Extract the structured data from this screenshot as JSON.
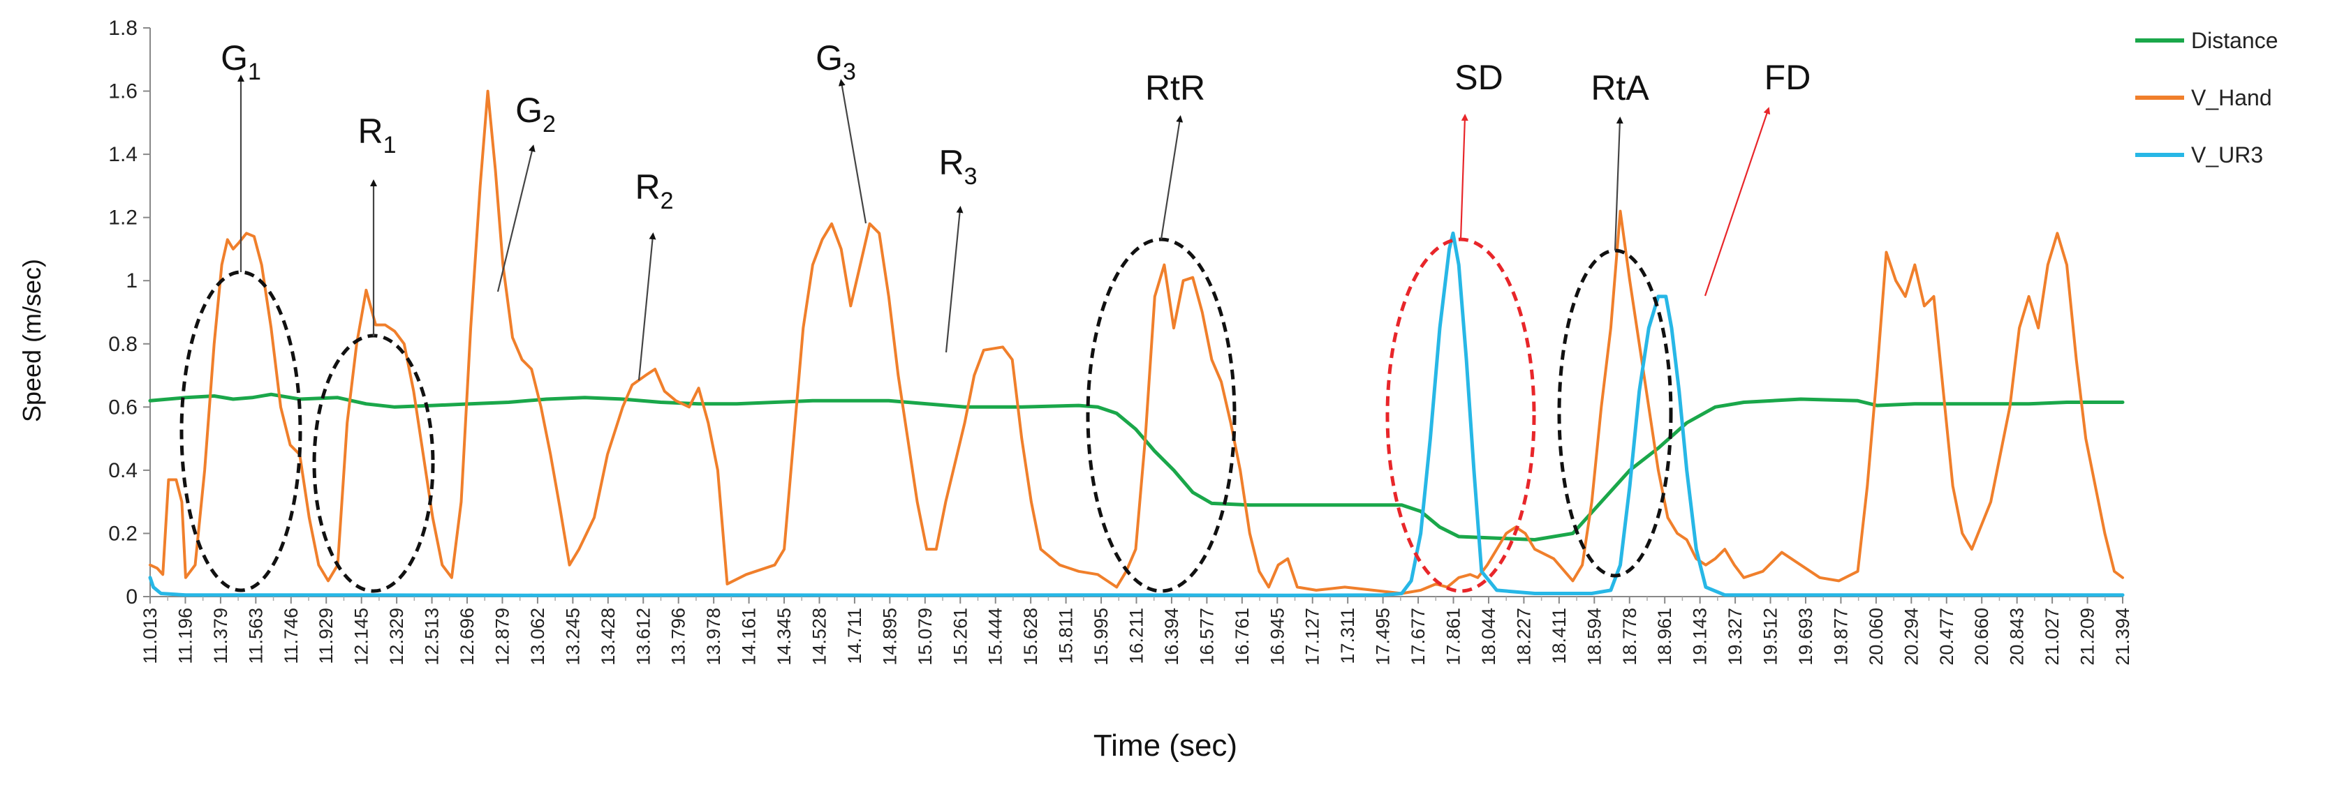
{
  "chart_data": {
    "type": "line",
    "xlabel": "Time (sec)",
    "ylabel": "Speed (m/sec)",
    "ylim": [
      0,
      1.8
    ],
    "xlim": [
      11.013,
      21.394
    ],
    "y_ticks": [
      "0",
      "0.2",
      "0.4",
      "0.6",
      "0.8",
      "1",
      "1.2",
      "1.4",
      "1.6",
      "1.8"
    ],
    "x_ticks": [
      "11.013",
      "11.196",
      "11.379",
      "11.563",
      "11.746",
      "11.929",
      "12.145",
      "12.329",
      "12.513",
      "12.696",
      "12.879",
      "13.062",
      "13.245",
      "13.428",
      "13.612",
      "13.796",
      "13.978",
      "14.161",
      "14.345",
      "14.528",
      "14.711",
      "14.895",
      "15.079",
      "15.261",
      "15.444",
      "15.628",
      "15.811",
      "15.995",
      "16.211",
      "16.394",
      "16.577",
      "16.761",
      "16.945",
      "17.127",
      "17.311",
      "17.495",
      "17.677",
      "17.861",
      "18.044",
      "18.227",
      "18.411",
      "18.594",
      "18.778",
      "18.961",
      "19.143",
      "19.327",
      "19.512",
      "19.693",
      "19.877",
      "20.060",
      "20.294",
      "20.477",
      "20.660",
      "20.843",
      "21.027",
      "21.209",
      "21.394"
    ],
    "grid": false,
    "legend_position": "top-right",
    "series": [
      {
        "name": "Distance",
        "color": "#1aa74a",
        "points": [
          [
            11.013,
            0.62
          ],
          [
            11.2,
            0.63
          ],
          [
            11.35,
            0.635
          ],
          [
            11.45,
            0.625
          ],
          [
            11.55,
            0.63
          ],
          [
            11.65,
            0.64
          ],
          [
            11.8,
            0.625
          ],
          [
            12.0,
            0.63
          ],
          [
            12.15,
            0.61
          ],
          [
            12.3,
            0.6
          ],
          [
            12.5,
            0.605
          ],
          [
            12.7,
            0.61
          ],
          [
            12.9,
            0.615
          ],
          [
            13.1,
            0.625
          ],
          [
            13.3,
            0.63
          ],
          [
            13.5,
            0.625
          ],
          [
            13.7,
            0.615
          ],
          [
            13.9,
            0.61
          ],
          [
            14.1,
            0.61
          ],
          [
            14.3,
            0.615
          ],
          [
            14.5,
            0.62
          ],
          [
            14.7,
            0.62
          ],
          [
            14.9,
            0.62
          ],
          [
            15.1,
            0.61
          ],
          [
            15.3,
            0.6
          ],
          [
            15.6,
            0.6
          ],
          [
            15.9,
            0.605
          ],
          [
            16.0,
            0.6
          ],
          [
            16.1,
            0.58
          ],
          [
            16.2,
            0.53
          ],
          [
            16.3,
            0.46
          ],
          [
            16.4,
            0.4
          ],
          [
            16.5,
            0.33
          ],
          [
            16.6,
            0.295
          ],
          [
            16.8,
            0.29
          ],
          [
            17.2,
            0.29
          ],
          [
            17.6,
            0.29
          ],
          [
            17.7,
            0.27
          ],
          [
            17.8,
            0.22
          ],
          [
            17.9,
            0.19
          ],
          [
            18.1,
            0.185
          ],
          [
            18.3,
            0.18
          ],
          [
            18.5,
            0.2
          ],
          [
            18.65,
            0.3
          ],
          [
            18.8,
            0.4
          ],
          [
            18.95,
            0.47
          ],
          [
            19.1,
            0.55
          ],
          [
            19.25,
            0.6
          ],
          [
            19.4,
            0.615
          ],
          [
            19.7,
            0.625
          ],
          [
            20.0,
            0.62
          ],
          [
            20.1,
            0.605
          ],
          [
            20.3,
            0.61
          ],
          [
            20.5,
            0.61
          ],
          [
            20.7,
            0.61
          ],
          [
            20.9,
            0.61
          ],
          [
            21.1,
            0.615
          ],
          [
            21.394,
            0.615
          ]
        ]
      },
      {
        "name": "V_Hand",
        "color": "#f07f2b",
        "points": [
          [
            11.013,
            0.1
          ],
          [
            11.05,
            0.09
          ],
          [
            11.08,
            0.07
          ],
          [
            11.11,
            0.37
          ],
          [
            11.15,
            0.37
          ],
          [
            11.18,
            0.3
          ],
          [
            11.2,
            0.06
          ],
          [
            11.25,
            0.1
          ],
          [
            11.3,
            0.4
          ],
          [
            11.35,
            0.8
          ],
          [
            11.39,
            1.05
          ],
          [
            11.42,
            1.13
          ],
          [
            11.45,
            1.1
          ],
          [
            11.48,
            1.12
          ],
          [
            11.52,
            1.15
          ],
          [
            11.56,
            1.14
          ],
          [
            11.6,
            1.05
          ],
          [
            11.65,
            0.85
          ],
          [
            11.7,
            0.6
          ],
          [
            11.75,
            0.48
          ],
          [
            11.8,
            0.45
          ],
          [
            11.85,
            0.25
          ],
          [
            11.9,
            0.1
          ],
          [
            11.95,
            0.05
          ],
          [
            12.0,
            0.1
          ],
          [
            12.05,
            0.55
          ],
          [
            12.1,
            0.8
          ],
          [
            12.15,
            0.97
          ],
          [
            12.2,
            0.86
          ],
          [
            12.25,
            0.86
          ],
          [
            12.3,
            0.84
          ],
          [
            12.35,
            0.8
          ],
          [
            12.4,
            0.65
          ],
          [
            12.45,
            0.45
          ],
          [
            12.5,
            0.25
          ],
          [
            12.55,
            0.1
          ],
          [
            12.6,
            0.06
          ],
          [
            12.65,
            0.3
          ],
          [
            12.7,
            0.85
          ],
          [
            12.75,
            1.3
          ],
          [
            12.79,
            1.6
          ],
          [
            12.83,
            1.35
          ],
          [
            12.87,
            1.05
          ],
          [
            12.92,
            0.82
          ],
          [
            12.97,
            0.75
          ],
          [
            13.02,
            0.72
          ],
          [
            13.07,
            0.6
          ],
          [
            13.12,
            0.45
          ],
          [
            13.17,
            0.28
          ],
          [
            13.22,
            0.1
          ],
          [
            13.27,
            0.15
          ],
          [
            13.35,
            0.25
          ],
          [
            13.42,
            0.45
          ],
          [
            13.5,
            0.6
          ],
          [
            13.55,
            0.67
          ],
          [
            13.62,
            0.7
          ],
          [
            13.67,
            0.72
          ],
          [
            13.72,
            0.65
          ],
          [
            13.78,
            0.62
          ],
          [
            13.85,
            0.6
          ],
          [
            13.9,
            0.66
          ],
          [
            13.95,
            0.55
          ],
          [
            14.0,
            0.4
          ],
          [
            14.05,
            0.04
          ],
          [
            14.15,
            0.07
          ],
          [
            14.3,
            0.1
          ],
          [
            14.35,
            0.15
          ],
          [
            14.4,
            0.5
          ],
          [
            14.45,
            0.85
          ],
          [
            14.5,
            1.05
          ],
          [
            14.55,
            1.13
          ],
          [
            14.6,
            1.18
          ],
          [
            14.65,
            1.1
          ],
          [
            14.7,
            0.92
          ],
          [
            14.75,
            1.05
          ],
          [
            14.8,
            1.18
          ],
          [
            14.85,
            1.15
          ],
          [
            14.9,
            0.95
          ],
          [
            14.95,
            0.7
          ],
          [
            15.0,
            0.5
          ],
          [
            15.05,
            0.3
          ],
          [
            15.1,
            0.15
          ],
          [
            15.15,
            0.15
          ],
          [
            15.2,
            0.3
          ],
          [
            15.3,
            0.55
          ],
          [
            15.35,
            0.7
          ],
          [
            15.4,
            0.78
          ],
          [
            15.5,
            0.79
          ],
          [
            15.55,
            0.75
          ],
          [
            15.6,
            0.5
          ],
          [
            15.65,
            0.3
          ],
          [
            15.7,
            0.15
          ],
          [
            15.8,
            0.1
          ],
          [
            15.9,
            0.08
          ],
          [
            16.0,
            0.07
          ],
          [
            16.05,
            0.05
          ],
          [
            16.1,
            0.03
          ],
          [
            16.15,
            0.08
          ],
          [
            16.2,
            0.15
          ],
          [
            16.25,
            0.5
          ],
          [
            16.3,
            0.95
          ],
          [
            16.35,
            1.05
          ],
          [
            16.4,
            0.85
          ],
          [
            16.45,
            1.0
          ],
          [
            16.5,
            1.01
          ],
          [
            16.55,
            0.9
          ],
          [
            16.6,
            0.75
          ],
          [
            16.65,
            0.68
          ],
          [
            16.7,
            0.55
          ],
          [
            16.75,
            0.4
          ],
          [
            16.8,
            0.2
          ],
          [
            16.85,
            0.08
          ],
          [
            16.9,
            0.03
          ],
          [
            16.95,
            0.1
          ],
          [
            17.0,
            0.12
          ],
          [
            17.05,
            0.03
          ],
          [
            17.15,
            0.02
          ],
          [
            17.3,
            0.03
          ],
          [
            17.45,
            0.02
          ],
          [
            17.6,
            0.01
          ],
          [
            17.7,
            0.02
          ],
          [
            17.78,
            0.04
          ],
          [
            17.84,
            0.03
          ],
          [
            17.9,
            0.06
          ],
          [
            17.96,
            0.07
          ],
          [
            18.0,
            0.06
          ],
          [
            18.05,
            0.1
          ],
          [
            18.1,
            0.15
          ],
          [
            18.15,
            0.2
          ],
          [
            18.2,
            0.22
          ],
          [
            18.25,
            0.2
          ],
          [
            18.3,
            0.15
          ],
          [
            18.4,
            0.12
          ],
          [
            18.5,
            0.05
          ],
          [
            18.55,
            0.1
          ],
          [
            18.6,
            0.3
          ],
          [
            18.65,
            0.6
          ],
          [
            18.7,
            0.85
          ],
          [
            18.75,
            1.22
          ],
          [
            18.8,
            1.0
          ],
          [
            18.85,
            0.8
          ],
          [
            18.9,
            0.6
          ],
          [
            18.95,
            0.4
          ],
          [
            19.0,
            0.25
          ],
          [
            19.05,
            0.2
          ],
          [
            19.1,
            0.18
          ],
          [
            19.15,
            0.12
          ],
          [
            19.2,
            0.1
          ],
          [
            19.25,
            0.12
          ],
          [
            19.3,
            0.15
          ],
          [
            19.35,
            0.1
          ],
          [
            19.4,
            0.06
          ],
          [
            19.5,
            0.08
          ],
          [
            19.6,
            0.14
          ],
          [
            19.7,
            0.1
          ],
          [
            19.8,
            0.06
          ],
          [
            19.9,
            0.05
          ],
          [
            20.0,
            0.08
          ],
          [
            20.05,
            0.35
          ],
          [
            20.1,
            0.7
          ],
          [
            20.15,
            1.09
          ],
          [
            20.2,
            1.0
          ],
          [
            20.25,
            0.95
          ],
          [
            20.3,
            1.05
          ],
          [
            20.35,
            0.92
          ],
          [
            20.4,
            0.95
          ],
          [
            20.45,
            0.65
          ],
          [
            20.5,
            0.35
          ],
          [
            20.55,
            0.2
          ],
          [
            20.6,
            0.15
          ],
          [
            20.7,
            0.3
          ],
          [
            20.8,
            0.6
          ],
          [
            20.85,
            0.85
          ],
          [
            20.9,
            0.95
          ],
          [
            20.95,
            0.85
          ],
          [
            21.0,
            1.05
          ],
          [
            21.05,
            1.15
          ],
          [
            21.1,
            1.05
          ],
          [
            21.15,
            0.75
          ],
          [
            21.2,
            0.5
          ],
          [
            21.25,
            0.35
          ],
          [
            21.3,
            0.2
          ],
          [
            21.35,
            0.08
          ],
          [
            21.394,
            0.06
          ]
        ]
      },
      {
        "name": "V_UR3",
        "color": "#27b7e6",
        "points": [
          [
            11.013,
            0.06
          ],
          [
            11.03,
            0.03
          ],
          [
            11.07,
            0.01
          ],
          [
            11.2,
            0.005
          ],
          [
            12.0,
            0.005
          ],
          [
            13.0,
            0.004
          ],
          [
            14.0,
            0.005
          ],
          [
            15.0,
            0.004
          ],
          [
            16.0,
            0.005
          ],
          [
            17.0,
            0.004
          ],
          [
            17.5,
            0.005
          ],
          [
            17.6,
            0.01
          ],
          [
            17.65,
            0.05
          ],
          [
            17.7,
            0.2
          ],
          [
            17.75,
            0.5
          ],
          [
            17.8,
            0.85
          ],
          [
            17.85,
            1.1
          ],
          [
            17.87,
            1.15
          ],
          [
            17.9,
            1.05
          ],
          [
            17.94,
            0.75
          ],
          [
            17.98,
            0.4
          ],
          [
            18.02,
            0.08
          ],
          [
            18.1,
            0.02
          ],
          [
            18.3,
            0.01
          ],
          [
            18.6,
            0.01
          ],
          [
            18.7,
            0.02
          ],
          [
            18.75,
            0.1
          ],
          [
            18.8,
            0.35
          ],
          [
            18.85,
            0.65
          ],
          [
            18.9,
            0.85
          ],
          [
            18.95,
            0.95
          ],
          [
            18.99,
            0.95
          ],
          [
            19.02,
            0.85
          ],
          [
            19.06,
            0.65
          ],
          [
            19.1,
            0.4
          ],
          [
            19.15,
            0.15
          ],
          [
            19.2,
            0.03
          ],
          [
            19.3,
            0.005
          ],
          [
            20.0,
            0.005
          ],
          [
            21.394,
            0.005
          ]
        ]
      }
    ],
    "annotations": [
      {
        "label": "G",
        "sub": "1",
        "color": "black"
      },
      {
        "label": "R",
        "sub": "1",
        "color": "black"
      },
      {
        "label": "G",
        "sub": "2",
        "color": "black"
      },
      {
        "label": "R",
        "sub": "2",
        "color": "black"
      },
      {
        "label": "G",
        "sub": "3",
        "color": "black"
      },
      {
        "label": "R",
        "sub": "3",
        "color": "black"
      },
      {
        "label": "RtR",
        "sub": "",
        "color": "black"
      },
      {
        "label": "SD",
        "sub": "",
        "color": "red"
      },
      {
        "label": "RtA",
        "sub": "",
        "color": "black"
      },
      {
        "label": "FD",
        "sub": "",
        "color": "red"
      }
    ]
  }
}
